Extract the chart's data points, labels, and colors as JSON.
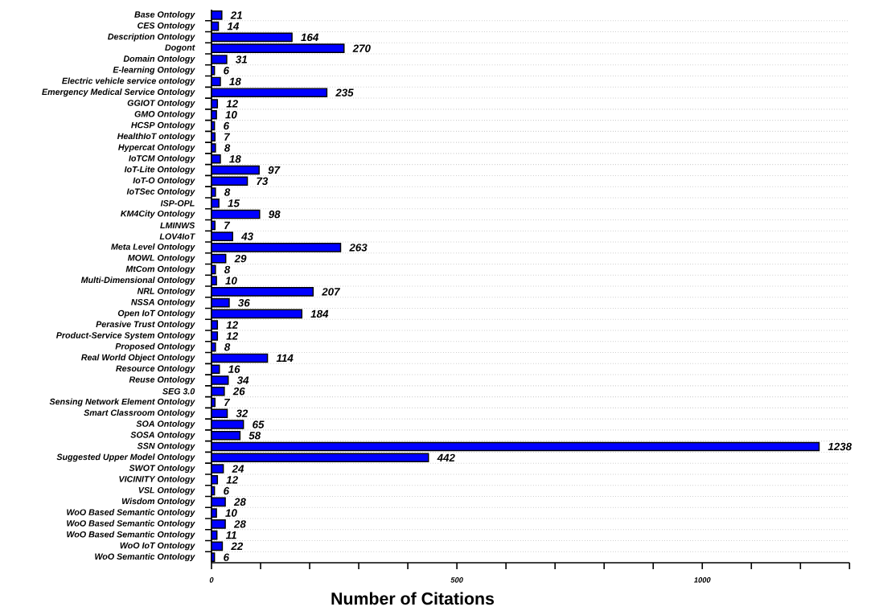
{
  "chart_data": {
    "type": "bar",
    "orientation": "horizontal",
    "xlabel": "Number of Citations",
    "categories": [
      "Base Ontology",
      "CES Ontology",
      "Description Ontology",
      "Dogont",
      "Domain Ontology",
      "E-learning Ontology",
      "Electric vehicle service ontology",
      "Emergency Medical Service Ontology",
      "GGIOT Ontology",
      "GMO Ontology",
      "HCSP Ontology",
      "HealthIoT ontology",
      "Hypercat Ontology",
      "IoTCM Ontology",
      "IoT-Lite Ontology",
      "IoT-O Ontology",
      "IoTSec Ontology",
      "ISP-OPL",
      "KM4City Ontology",
      "LMINWS",
      "LOV4IoT",
      "Meta Level Ontology",
      "MOWL Ontology",
      "MtCom Ontology",
      "Multi-Dimensional Ontology",
      "NRL Ontology",
      "NSSA Ontology",
      "Open IoT Ontology",
      "Perasive Trust Ontology",
      "Product-Service System Ontology",
      "Proposed Ontology",
      "Real World Object Ontology",
      "Resource Ontology",
      "Reuse Ontology",
      "SEG 3.0",
      "Sensing Network Element Ontology",
      "Smart Classroom Ontology",
      "SOA Ontology",
      "SOSA Ontology",
      "SSN Ontology",
      "Suggested Upper Model Ontology",
      "SWOT Ontology",
      "VICINITY Ontology",
      "VSL Ontology",
      "Wisdom Ontology",
      "WoO Based Semantic Ontology",
      "WoO Based Semantic Ontology",
      "WoO Based Semantic Ontology",
      "WoO IoT Ontology",
      "WoO Semantic Ontology"
    ],
    "values": [
      21,
      14,
      164,
      270,
      31,
      6,
      18,
      235,
      12,
      10,
      6,
      7,
      8,
      18,
      97,
      73,
      8,
      15,
      98,
      7,
      43,
      263,
      29,
      8,
      10,
      207,
      36,
      184,
      12,
      12,
      8,
      114,
      16,
      34,
      26,
      7,
      32,
      65,
      58,
      1238,
      442,
      24,
      12,
      6,
      28,
      10,
      28,
      11,
      22,
      6
    ],
    "color": "#0000ff",
    "data_labels": true,
    "xlim": [
      0,
      1300
    ],
    "xticks": [
      0,
      {
        "value": 100,
        "label": null
      },
      {
        "value": 200,
        "label": null
      },
      {
        "value": 300,
        "label": null
      },
      {
        "value": 400,
        "label": null
      },
      500,
      {
        "value": 600,
        "label": null
      },
      {
        "value": 700,
        "label": null
      },
      {
        "value": 800,
        "label": null
      },
      {
        "value": 900,
        "label": null
      },
      1000,
      {
        "value": 1100,
        "label": null
      },
      {
        "value": 1200,
        "label": null
      },
      {
        "value": 1300,
        "label": null
      }
    ],
    "grid": "y"
  }
}
